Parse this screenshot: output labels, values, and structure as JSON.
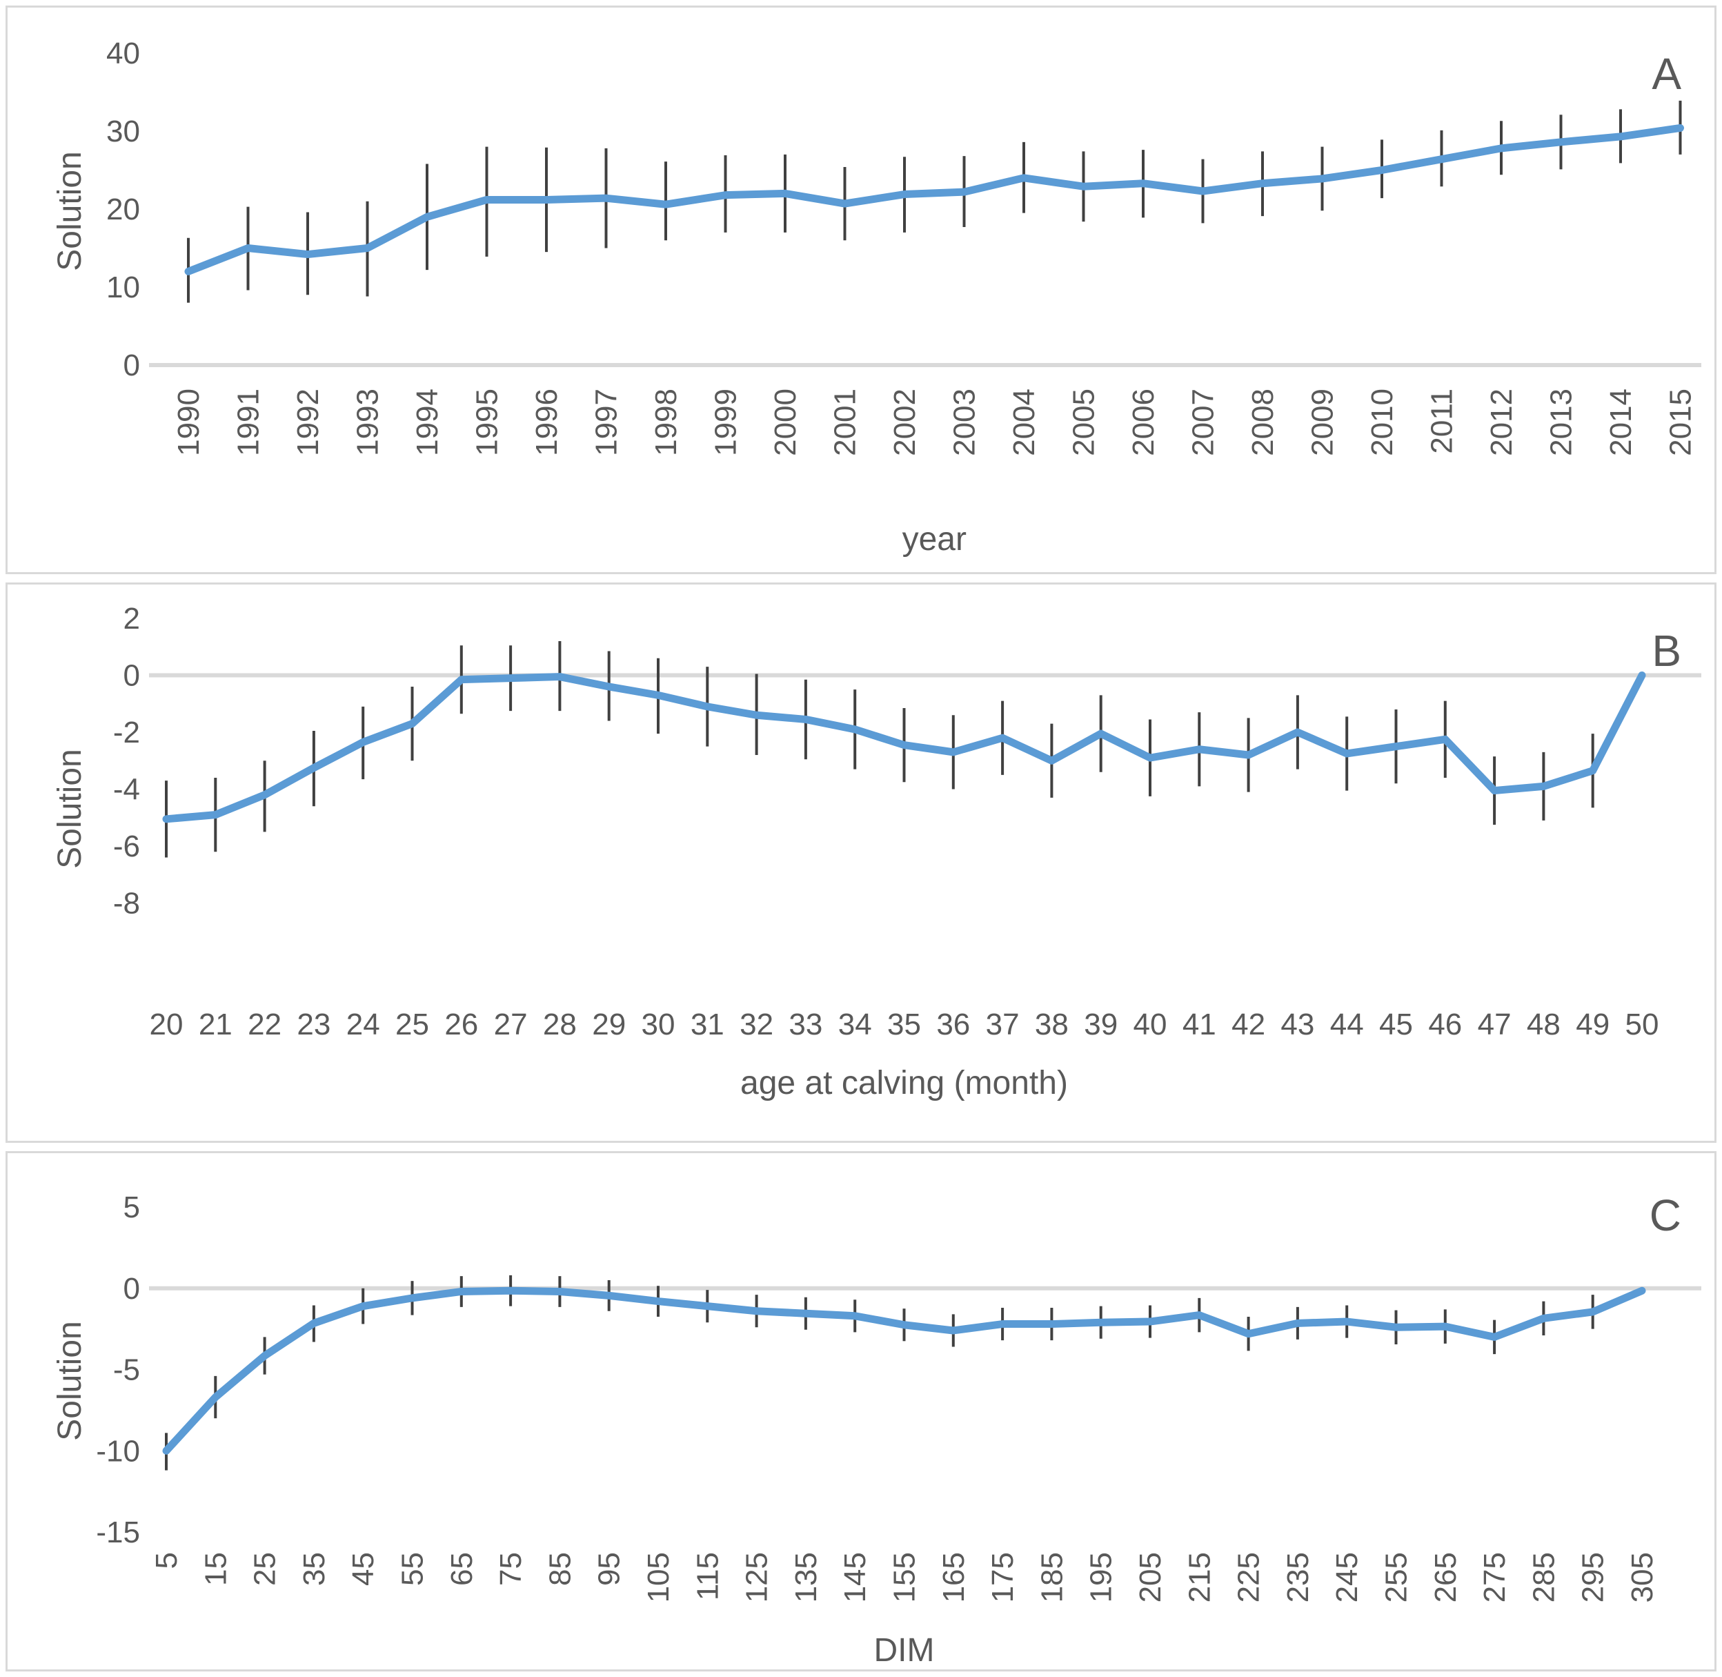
{
  "page": {
    "background": "#ffffff"
  },
  "colors": {
    "line": "#5B9BD5",
    "error_bar": "#404040",
    "zero_line": "#d9d9d9",
    "panel_border": "#d9d9d9",
    "text": "#595959"
  },
  "chart_data": [
    {
      "type": "line",
      "panel_label": "A",
      "xlabel": "year",
      "ylabel": "Solution",
      "legend": "none",
      "grid": "zero-line-only",
      "ylim": [
        0,
        40
      ],
      "yticks": [
        40,
        30,
        20,
        10,
        0
      ],
      "x_tick_rotation": 90,
      "x": [
        1990,
        1991,
        1992,
        1993,
        1994,
        1995,
        1996,
        1997,
        1998,
        1999,
        2000,
        2001,
        2002,
        2003,
        2004,
        2005,
        2006,
        2007,
        2008,
        2009,
        2010,
        2011,
        2012,
        2013,
        2014,
        2015
      ],
      "values": [
        12,
        15,
        14.2,
        15,
        19,
        21.2,
        21.2,
        21.4,
        20.6,
        21.8,
        22,
        20.7,
        21.9,
        22.2,
        24,
        22.9,
        23.3,
        22.3,
        23.3,
        23.9,
        25,
        26.4,
        27.8,
        28.6,
        29.3,
        30.4
      ],
      "error_low": [
        8,
        9.6,
        9,
        8.8,
        12.2,
        13.9,
        14.5,
        15,
        16,
        17,
        17,
        16,
        17,
        17.7,
        19.5,
        18.4,
        18.9,
        18.2,
        19.1,
        19.8,
        21.4,
        22.9,
        24.4,
        25.1,
        25.9,
        27
      ],
      "error_high": [
        16.3,
        20.3,
        19.6,
        21,
        25.8,
        28,
        27.9,
        27.8,
        26.1,
        26.9,
        27,
        25.4,
        26.7,
        26.8,
        28.6,
        27.4,
        27.6,
        26.4,
        27.4,
        28,
        28.9,
        30.1,
        31.3,
        32.1,
        32.8,
        33.9
      ]
    },
    {
      "type": "line",
      "panel_label": "B",
      "xlabel": "age at calving (month)",
      "ylabel": "Solution",
      "legend": "none",
      "grid": "zero-line-only",
      "ylim": [
        -8,
        2
      ],
      "yticks": [
        2,
        0,
        -2,
        -4,
        -6,
        -8
      ],
      "x_tick_rotation": 0,
      "x": [
        20,
        21,
        22,
        23,
        24,
        25,
        26,
        27,
        28,
        29,
        30,
        31,
        32,
        33,
        34,
        35,
        36,
        37,
        38,
        39,
        40,
        41,
        42,
        43,
        44,
        45,
        46,
        47,
        48,
        49,
        50
      ],
      "values": [
        -5.05,
        -4.9,
        -4.2,
        -3.25,
        -2.35,
        -1.7,
        -0.15,
        -0.1,
        -0.05,
        -0.4,
        -0.7,
        -1.1,
        -1.4,
        -1.55,
        -1.9,
        -2.45,
        -2.7,
        -2.2,
        -3.0,
        -2.05,
        -2.9,
        -2.6,
        -2.8,
        -2.0,
        -2.75,
        -2.5,
        -2.25,
        -4.05,
        -3.9,
        -3.35,
        0.0
      ],
      "error_low": [
        -6.4,
        -6.2,
        -5.5,
        -4.6,
        -3.65,
        -3.0,
        -1.35,
        -1.25,
        -1.25,
        -1.6,
        -2.05,
        -2.5,
        -2.8,
        -2.95,
        -3.3,
        -3.75,
        -4.0,
        -3.5,
        -4.3,
        -3.4,
        -4.25,
        -3.9,
        -4.1,
        -3.3,
        -4.05,
        -3.8,
        -3.6,
        -5.25,
        -5.1,
        -4.65,
        null
      ],
      "error_high": [
        -3.7,
        -3.6,
        -3.0,
        -1.95,
        -1.1,
        -0.4,
        1.05,
        1.05,
        1.2,
        0.85,
        0.6,
        0.3,
        0.05,
        -0.15,
        -0.5,
        -1.15,
        -1.4,
        -0.9,
        -1.7,
        -0.7,
        -1.55,
        -1.3,
        -1.5,
        -0.7,
        -1.45,
        -1.2,
        -0.9,
        -2.85,
        -2.7,
        -2.05,
        null
      ]
    },
    {
      "type": "line",
      "panel_label": "C",
      "xlabel": "DIM",
      "ylabel": "Solution",
      "legend": "none",
      "grid": "zero-line-only",
      "ylim": [
        -15,
        5
      ],
      "yticks": [
        5,
        0,
        -5,
        -10,
        -15
      ],
      "x_tick_rotation": 90,
      "x": [
        5,
        15,
        25,
        35,
        45,
        55,
        65,
        75,
        85,
        95,
        105,
        115,
        125,
        135,
        145,
        155,
        165,
        175,
        185,
        195,
        205,
        215,
        225,
        235,
        245,
        255,
        265,
        275,
        285,
        295,
        305
      ],
      "values": [
        -10,
        -6.7,
        -4.15,
        -2.15,
        -1.1,
        -0.6,
        -0.2,
        -0.15,
        -0.2,
        -0.45,
        -0.8,
        -1.1,
        -1.4,
        -1.55,
        -1.7,
        -2.25,
        -2.6,
        -2.2,
        -2.2,
        -2.1,
        -2.05,
        -1.65,
        -2.8,
        -2.15,
        -2.05,
        -2.4,
        -2.35,
        -3.0,
        -1.85,
        -1.45,
        -0.15
      ],
      "error_low": [
        -11.2,
        -8.0,
        -5.3,
        -3.3,
        -2.2,
        -1.65,
        -1.15,
        -1.1,
        -1.15,
        -1.4,
        -1.75,
        -2.1,
        -2.4,
        -2.55,
        -2.7,
        -3.25,
        -3.6,
        -3.2,
        -3.2,
        -3.1,
        -3.05,
        -2.7,
        -3.85,
        -3.15,
        -3.05,
        -3.45,
        -3.4,
        -4.05,
        -2.9,
        -2.5,
        null
      ],
      "error_high": [
        -8.9,
        -5.4,
        -3.0,
        -1.05,
        0.0,
        0.45,
        0.75,
        0.8,
        0.75,
        0.5,
        0.15,
        -0.1,
        -0.4,
        -0.55,
        -0.7,
        -1.25,
        -1.6,
        -1.2,
        -1.2,
        -1.1,
        -1.05,
        -0.6,
        -1.75,
        -1.15,
        -1.05,
        -1.35,
        -1.3,
        -1.95,
        -0.8,
        -0.4,
        null
      ]
    }
  ]
}
